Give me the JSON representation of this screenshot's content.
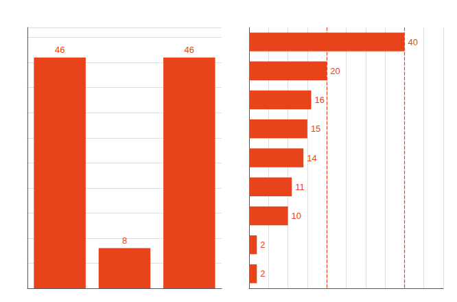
{
  "chart_data": [
    {
      "type": "bar",
      "categories": [
        null,
        null,
        null
      ],
      "values": [
        46,
        8,
        46
      ],
      "color": "#E8431A",
      "data_labels": true,
      "ylim": [
        0,
        52
      ],
      "yticks": [
        0,
        5,
        10,
        15,
        20,
        25,
        30,
        35,
        40,
        45,
        50
      ],
      "grid": true,
      "tick_labels": false
    },
    {
      "type": "bar",
      "orientation": "horizontal",
      "categories": [
        null,
        null,
        null,
        null,
        null,
        null,
        null,
        null,
        null
      ],
      "values": [
        40,
        20,
        16,
        15,
        14,
        11,
        10,
        2,
        2
      ],
      "color": "#E8431A",
      "data_labels": true,
      "xlim": [
        0,
        50
      ],
      "xticks": [
        0,
        5,
        10,
        15,
        20,
        25,
        30,
        35,
        40,
        45,
        50
      ],
      "grid": true,
      "tick_labels": false,
      "reference_lines": [
        20,
        40
      ]
    }
  ]
}
